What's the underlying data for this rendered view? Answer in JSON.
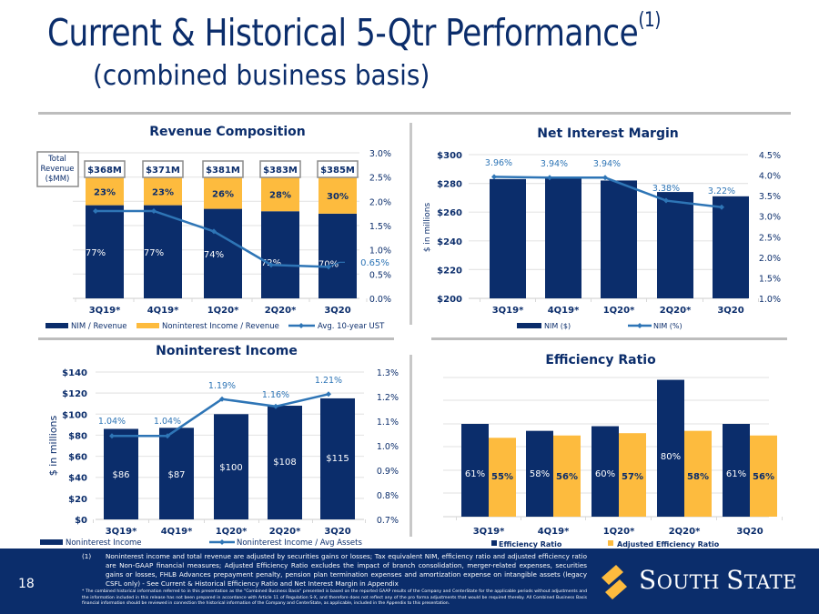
{
  "header": {
    "title": "Current & Historical 5-Qtr Performance",
    "title_superscript": "(1)",
    "subtitle": "(combined business basis)"
  },
  "colors": {
    "navy": "#0b2d6b",
    "gold": "#fdbb3e",
    "line_blue": "#2e75b6",
    "grid": "#e6e6e6",
    "footer_bg": "#0b2d6b"
  },
  "chart_data": [
    {
      "id": "revenue",
      "type": "bar",
      "stacked": true,
      "title": "Revenue Composition",
      "categories": [
        "3Q19*",
        "4Q19*",
        "1Q20*",
        "2Q20*",
        "3Q20"
      ],
      "series": [
        {
          "name": "NIM / Revenue",
          "values": [
            77,
            77,
            74,
            72,
            70
          ],
          "labels": [
            "77%",
            "77%",
            "74%",
            "72%",
            "70%"
          ],
          "color": "#0b2d6b"
        },
        {
          "name": "Noninterest Income / Revenue",
          "values": [
            23,
            23,
            26,
            28,
            30
          ],
          "labels": [
            "23%",
            "23%",
            "26%",
            "28%",
            "30%"
          ],
          "color": "#fdbb3e"
        },
        {
          "name": "Avg. 10-year UST",
          "type": "line",
          "axis": "right",
          "values": [
            1.8,
            1.8,
            1.38,
            0.69,
            0.65
          ],
          "color": "#2e75b6"
        }
      ],
      "total_revenue_header": [
        "Total",
        "Revenue",
        "($MM)"
      ],
      "total_revenue_labels": [
        "$368M",
        "$371M",
        "$381M",
        "$383M",
        "$385M"
      ],
      "line_end_label": "0.65%",
      "y2_ticks": [
        "3.0%",
        "2.5%",
        "2.0%",
        "1.5%",
        "1.0%",
        "0.5%",
        "0.0%"
      ],
      "y2lim": [
        0,
        3.0
      ],
      "legend": [
        "NIM / Revenue",
        "Noninterest Income / Revenue",
        "Avg. 10-year UST"
      ],
      "legend_position": "bottom",
      "grid": true
    },
    {
      "id": "nim",
      "type": "bar",
      "title": "Net Interest Margin",
      "categories": [
        "3Q19*",
        "4Q19*",
        "1Q20*",
        "2Q20*",
        "3Q20"
      ],
      "series": [
        {
          "name": "NIM ($)",
          "values": [
            283,
            284,
            282,
            274,
            271
          ],
          "color": "#0b2d6b"
        },
        {
          "name": "NIM (%)",
          "type": "line",
          "axis": "right",
          "values": [
            3.96,
            3.94,
            3.94,
            3.38,
            3.22
          ],
          "labels": [
            "3.96%",
            "3.94%",
            "3.94%",
            "3.38%",
            "3.22%"
          ],
          "color": "#2e75b6"
        }
      ],
      "ylabel": "$ in millions",
      "y_ticks": [
        "$300",
        "$280",
        "$260",
        "$240",
        "$220",
        "$200"
      ],
      "ylim": [
        200,
        300
      ],
      "y2_ticks": [
        "4.5%",
        "4.0%",
        "3.5%",
        "3.0%",
        "2.5%",
        "2.0%",
        "1.5%",
        "1.0%"
      ],
      "y2lim": [
        1.0,
        4.5
      ],
      "legend": [
        "NIM ($)",
        "NIM (%)"
      ],
      "legend_position": "bottom",
      "grid": true
    },
    {
      "id": "nonint",
      "type": "bar",
      "title": "Noninterest Income",
      "categories": [
        "3Q19*",
        "4Q19*",
        "1Q20*",
        "2Q20*",
        "3Q20"
      ],
      "series": [
        {
          "name": "Noninterest Income",
          "values": [
            86,
            87,
            100,
            108,
            115
          ],
          "labels": [
            "$86",
            "$87",
            "$100",
            "$108",
            "$115"
          ],
          "color": "#0b2d6b"
        },
        {
          "name": "Noninterest Income / Avg Assets",
          "type": "line",
          "axis": "right",
          "values": [
            1.04,
            1.04,
            1.19,
            1.16,
            1.21
          ],
          "labels": [
            "1.04%",
            "1.04%",
            "1.19%",
            "1.16%",
            "1.21%"
          ],
          "color": "#2e75b6"
        }
      ],
      "ylabel": "$ in millions",
      "y_ticks": [
        "$140",
        "$120",
        "$100",
        "$80",
        "$60",
        "$40",
        "$20",
        "$0"
      ],
      "ylim": [
        0,
        140
      ],
      "y2_ticks": [
        "1.3%",
        "1.2%",
        "1.1%",
        "1.0%",
        "0.9%",
        "0.8%",
        "0.7%"
      ],
      "y2lim": [
        0.7,
        1.3
      ],
      "legend": [
        "Noninterest Income",
        "Noninterest Income / Avg Assets"
      ],
      "legend_position": "bottom",
      "grid": true
    },
    {
      "id": "efficiency",
      "type": "bar",
      "title": "Efficiency Ratio",
      "categories": [
        "3Q19*",
        "4Q19*",
        "1Q20*",
        "2Q20*",
        "3Q20"
      ],
      "series": [
        {
          "name": "Efficiency Ratio",
          "values": [
            61,
            58,
            60,
            80,
            61
          ],
          "labels": [
            "61%",
            "58%",
            "60%",
            "80%",
            "61%"
          ],
          "color": "#0b2d6b"
        },
        {
          "name": "Adjusted Efficiency Ratio",
          "values": [
            55,
            56,
            57,
            58,
            56
          ],
          "labels": [
            "55%",
            "56%",
            "57%",
            "58%",
            "56%"
          ],
          "color": "#fdbb3e"
        }
      ],
      "ylim": [
        0,
        94
      ],
      "legend": [
        "Efficiency Ratio",
        "Adjusted Efficiency Ratio"
      ],
      "legend_position": "bottom",
      "grid": true
    }
  ],
  "footer": {
    "page_number": "18",
    "footnote_marker": "(1)",
    "footnote_1": "Noninterest income and total revenue are adjusted by securities gains or losses; Tax equivalent NIM, efficiency ratio and adjusted efficiency ratio are Non-GAAP financial measures; Adjusted Efficiency Ratio excludes the impact of branch consolidation, merger-related expenses, securities gains or losses, FHLB Advances prepayment penalty, pension plan termination expenses and amortization expense on intangible assets (legacy CSFL only) - See Current & Historical Efficiency Ratio and Net Interest Margin in Appendix",
    "footnote_2": "* The combined historical information referred to in this presentation as the \"Combined Business Basis\" presented is based on the reported GAAP results of the Company and CenterState for the applicable periods without adjustments and the information included in this release has not been prepared in accordance with Article 11 of Regulation S-X, and therefore does not reflect any of the pro forma adjustments that would be required thereby. All Combined Business Basis financial information should be reviewed in connection the historical information of the Company and CenterState, as applicable, included in the Appendix to this presentation.",
    "logo_text_1": "S",
    "logo_text_2": "OUTH ",
    "logo_text_3": "S",
    "logo_text_4": "TATE"
  }
}
